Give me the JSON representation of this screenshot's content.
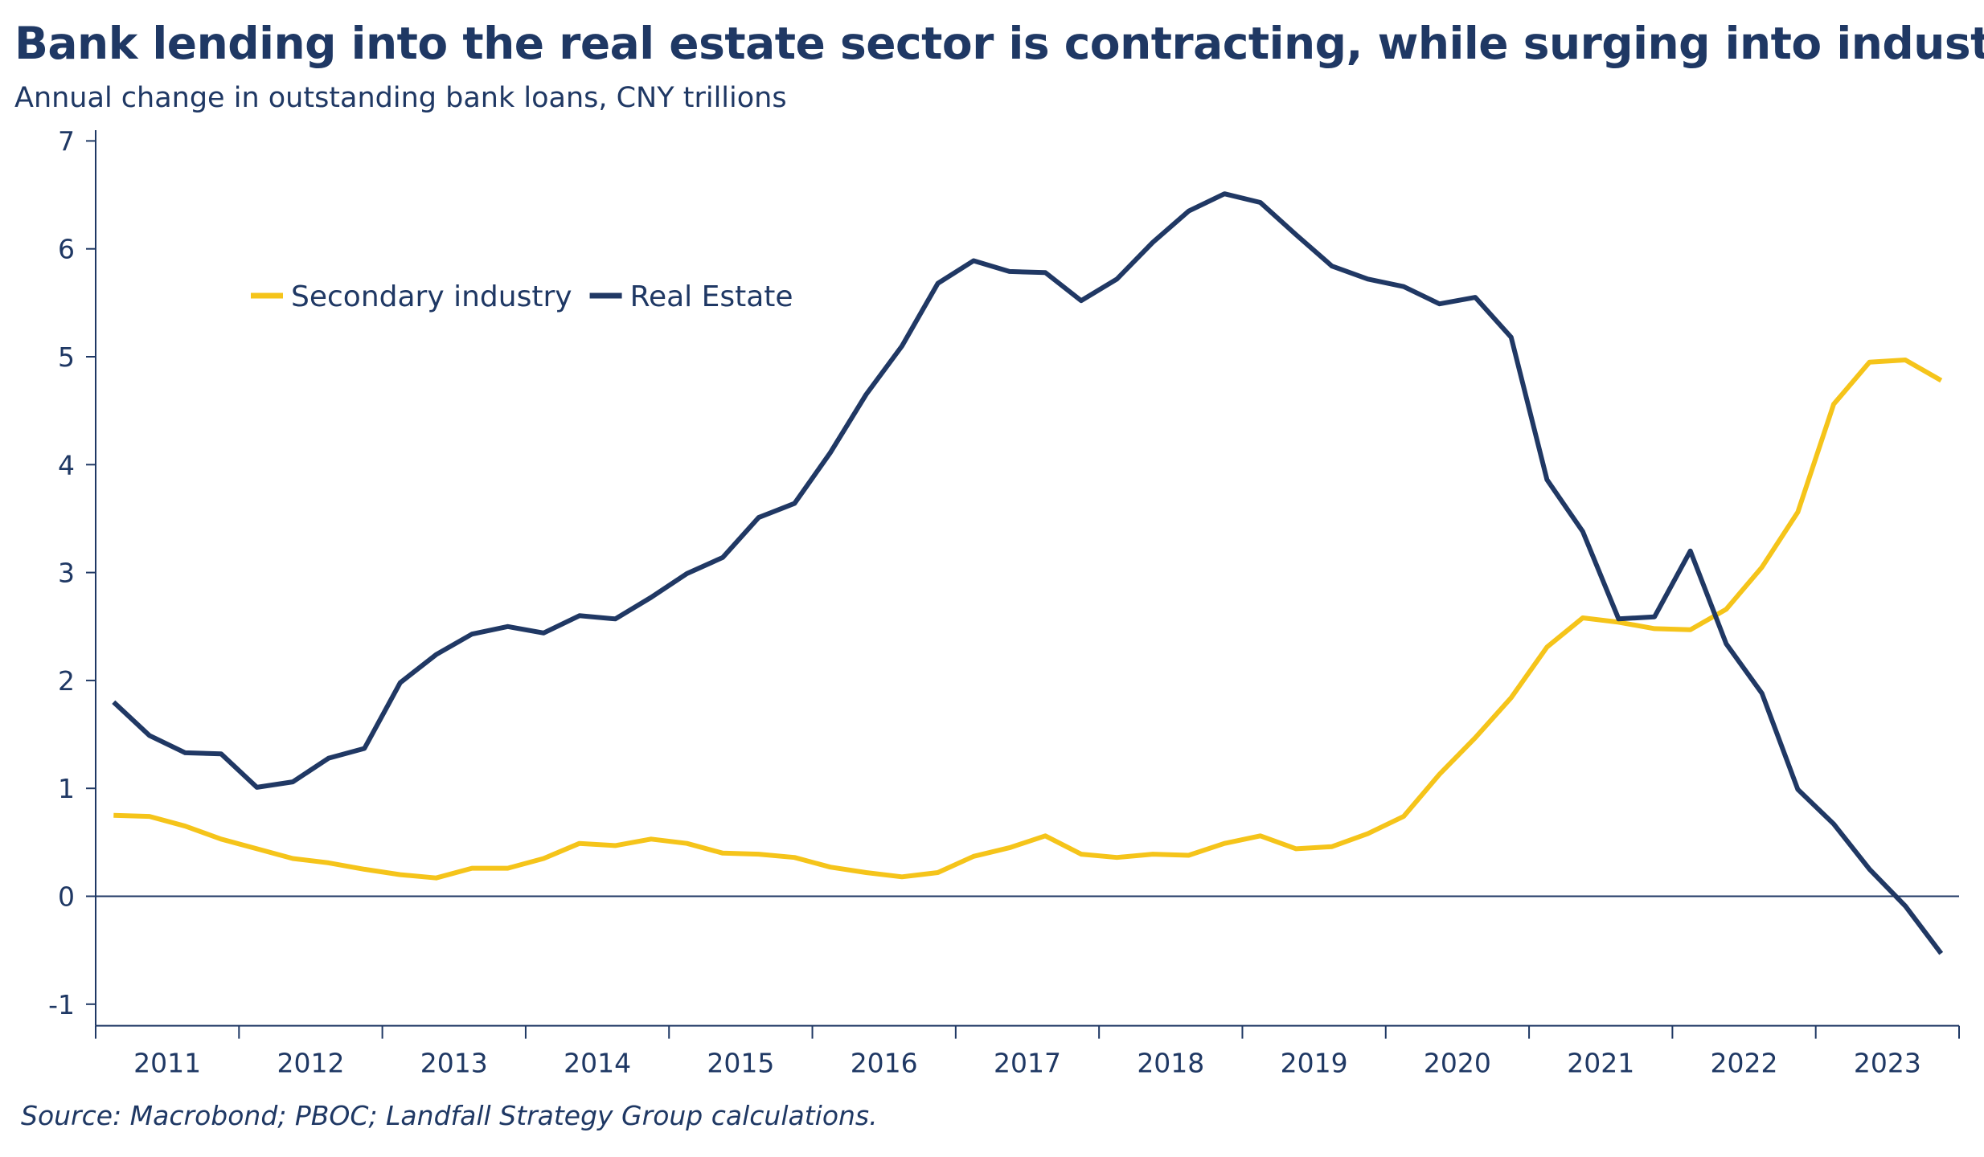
{
  "title": "Bank lending into the real estate sector is contracting, while surging into industry",
  "subtitle": "Annual change in outstanding bank loans, CNY trillions",
  "source": "Source: Macrobond; PBOC; Landfall Strategy Group calculations.",
  "chart_data": {
    "type": "line",
    "x_unit": "year (quarterly observations)",
    "xlim": [
      2010.5,
      2023.5
    ],
    "ylim": [
      -1.2,
      7.1
    ],
    "y_ticks": [
      -1,
      0,
      1,
      2,
      3,
      4,
      5,
      6,
      7
    ],
    "x_tick_labels": [
      "2011",
      "2012",
      "2013",
      "2014",
      "2015",
      "2016",
      "2017",
      "2018",
      "2019",
      "2020",
      "2021",
      "2022",
      "2023"
    ],
    "zero_line": true,
    "grid": false,
    "legend": {
      "placement": "top-left",
      "entries": [
        "Secondary industry",
        "Real Estate"
      ]
    },
    "series": [
      {
        "name": "Secondary industry",
        "color": "#f5c41a",
        "x": [
          2010.625,
          2010.875,
          2011.125,
          2011.375,
          2011.625,
          2011.875,
          2012.125,
          2012.375,
          2012.625,
          2012.875,
          2013.125,
          2013.375,
          2013.625,
          2013.875,
          2014.125,
          2014.375,
          2014.625,
          2014.875,
          2015.125,
          2015.375,
          2015.625,
          2015.875,
          2016.125,
          2016.375,
          2016.625,
          2016.875,
          2017.125,
          2017.375,
          2017.625,
          2017.875,
          2018.125,
          2018.375,
          2018.625,
          2018.875,
          2019.125,
          2019.375,
          2019.625,
          2019.875,
          2020.125,
          2020.375,
          2020.625,
          2020.875,
          2021.125,
          2021.375,
          2021.625,
          2021.875,
          2022.125,
          2022.375,
          2022.625,
          2022.875,
          2023.125,
          2023.375
        ],
        "values": [
          0.75,
          0.74,
          0.65,
          0.53,
          0.44,
          0.35,
          0.31,
          0.25,
          0.2,
          0.17,
          0.26,
          0.26,
          0.35,
          0.49,
          0.47,
          0.53,
          0.49,
          0.4,
          0.39,
          0.36,
          0.27,
          0.22,
          0.18,
          0.22,
          0.37,
          0.45,
          0.56,
          0.39,
          0.36,
          0.39,
          0.38,
          0.49,
          0.56,
          0.44,
          0.46,
          0.58,
          0.74,
          1.13,
          1.47,
          1.84,
          2.31,
          2.58,
          2.54,
          2.48,
          2.47,
          2.66,
          3.05,
          3.56,
          4.56,
          4.95,
          4.97,
          4.78
        ]
      },
      {
        "name": "Real Estate",
        "color": "#203864",
        "x": [
          2010.625,
          2010.875,
          2011.125,
          2011.375,
          2011.625,
          2011.875,
          2012.125,
          2012.375,
          2012.625,
          2012.875,
          2013.125,
          2013.375,
          2013.625,
          2013.875,
          2014.125,
          2014.375,
          2014.625,
          2014.875,
          2015.125,
          2015.375,
          2015.625,
          2015.875,
          2016.125,
          2016.375,
          2016.625,
          2016.875,
          2017.125,
          2017.375,
          2017.625,
          2017.875,
          2018.125,
          2018.375,
          2018.625,
          2018.875,
          2019.125,
          2019.375,
          2019.625,
          2019.875,
          2020.125,
          2020.375,
          2020.625,
          2020.875,
          2021.125,
          2021.375,
          2021.625,
          2021.875,
          2022.125,
          2022.375,
          2022.625,
          2022.875,
          2023.125,
          2023.375
        ],
        "values": [
          1.8,
          1.49,
          1.33,
          1.32,
          1.01,
          1.06,
          1.28,
          1.37,
          1.98,
          2.24,
          2.43,
          2.5,
          2.44,
          2.6,
          2.57,
          2.77,
          2.99,
          3.14,
          3.51,
          3.64,
          4.11,
          4.65,
          5.1,
          5.68,
          5.89,
          5.79,
          5.78,
          5.52,
          5.72,
          6.06,
          6.35,
          6.51,
          6.43,
          6.13,
          5.84,
          5.72,
          5.65,
          5.49,
          5.55,
          5.18,
          3.86,
          3.38,
          2.57,
          2.59,
          3.2,
          2.34,
          1.88,
          0.99,
          0.67,
          0.25,
          -0.09,
          -0.53
        ]
      }
    ]
  }
}
